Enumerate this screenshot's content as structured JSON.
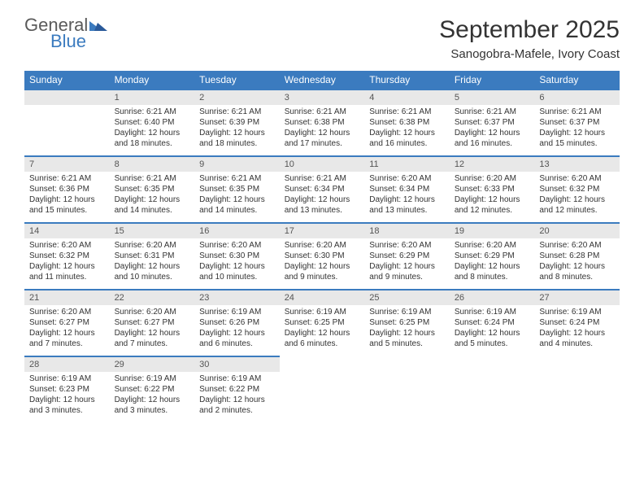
{
  "logo": {
    "text_general": "General",
    "text_blue": "Blue",
    "triangle_color": "#3b7bbf"
  },
  "title": "September 2025",
  "location": "Sanogobra-Mafele, Ivory Coast",
  "header_bg": "#3b7bbf",
  "header_fg": "#ffffff",
  "daynum_bg": "#e8e8e8",
  "row_border": "#3b7bbf",
  "weekdays": [
    "Sunday",
    "Monday",
    "Tuesday",
    "Wednesday",
    "Thursday",
    "Friday",
    "Saturday"
  ],
  "weeks": [
    [
      {
        "day": "",
        "lines": [
          "",
          "",
          "",
          ""
        ]
      },
      {
        "day": "1",
        "lines": [
          "Sunrise: 6:21 AM",
          "Sunset: 6:40 PM",
          "Daylight: 12 hours",
          "and 18 minutes."
        ]
      },
      {
        "day": "2",
        "lines": [
          "Sunrise: 6:21 AM",
          "Sunset: 6:39 PM",
          "Daylight: 12 hours",
          "and 18 minutes."
        ]
      },
      {
        "day": "3",
        "lines": [
          "Sunrise: 6:21 AM",
          "Sunset: 6:38 PM",
          "Daylight: 12 hours",
          "and 17 minutes."
        ]
      },
      {
        "day": "4",
        "lines": [
          "Sunrise: 6:21 AM",
          "Sunset: 6:38 PM",
          "Daylight: 12 hours",
          "and 16 minutes."
        ]
      },
      {
        "day": "5",
        "lines": [
          "Sunrise: 6:21 AM",
          "Sunset: 6:37 PM",
          "Daylight: 12 hours",
          "and 16 minutes."
        ]
      },
      {
        "day": "6",
        "lines": [
          "Sunrise: 6:21 AM",
          "Sunset: 6:37 PM",
          "Daylight: 12 hours",
          "and 15 minutes."
        ]
      }
    ],
    [
      {
        "day": "7",
        "lines": [
          "Sunrise: 6:21 AM",
          "Sunset: 6:36 PM",
          "Daylight: 12 hours",
          "and 15 minutes."
        ]
      },
      {
        "day": "8",
        "lines": [
          "Sunrise: 6:21 AM",
          "Sunset: 6:35 PM",
          "Daylight: 12 hours",
          "and 14 minutes."
        ]
      },
      {
        "day": "9",
        "lines": [
          "Sunrise: 6:21 AM",
          "Sunset: 6:35 PM",
          "Daylight: 12 hours",
          "and 14 minutes."
        ]
      },
      {
        "day": "10",
        "lines": [
          "Sunrise: 6:21 AM",
          "Sunset: 6:34 PM",
          "Daylight: 12 hours",
          "and 13 minutes."
        ]
      },
      {
        "day": "11",
        "lines": [
          "Sunrise: 6:20 AM",
          "Sunset: 6:34 PM",
          "Daylight: 12 hours",
          "and 13 minutes."
        ]
      },
      {
        "day": "12",
        "lines": [
          "Sunrise: 6:20 AM",
          "Sunset: 6:33 PM",
          "Daylight: 12 hours",
          "and 12 minutes."
        ]
      },
      {
        "day": "13",
        "lines": [
          "Sunrise: 6:20 AM",
          "Sunset: 6:32 PM",
          "Daylight: 12 hours",
          "and 12 minutes."
        ]
      }
    ],
    [
      {
        "day": "14",
        "lines": [
          "Sunrise: 6:20 AM",
          "Sunset: 6:32 PM",
          "Daylight: 12 hours",
          "and 11 minutes."
        ]
      },
      {
        "day": "15",
        "lines": [
          "Sunrise: 6:20 AM",
          "Sunset: 6:31 PM",
          "Daylight: 12 hours",
          "and 10 minutes."
        ]
      },
      {
        "day": "16",
        "lines": [
          "Sunrise: 6:20 AM",
          "Sunset: 6:30 PM",
          "Daylight: 12 hours",
          "and 10 minutes."
        ]
      },
      {
        "day": "17",
        "lines": [
          "Sunrise: 6:20 AM",
          "Sunset: 6:30 PM",
          "Daylight: 12 hours",
          "and 9 minutes."
        ]
      },
      {
        "day": "18",
        "lines": [
          "Sunrise: 6:20 AM",
          "Sunset: 6:29 PM",
          "Daylight: 12 hours",
          "and 9 minutes."
        ]
      },
      {
        "day": "19",
        "lines": [
          "Sunrise: 6:20 AM",
          "Sunset: 6:29 PM",
          "Daylight: 12 hours",
          "and 8 minutes."
        ]
      },
      {
        "day": "20",
        "lines": [
          "Sunrise: 6:20 AM",
          "Sunset: 6:28 PM",
          "Daylight: 12 hours",
          "and 8 minutes."
        ]
      }
    ],
    [
      {
        "day": "21",
        "lines": [
          "Sunrise: 6:20 AM",
          "Sunset: 6:27 PM",
          "Daylight: 12 hours",
          "and 7 minutes."
        ]
      },
      {
        "day": "22",
        "lines": [
          "Sunrise: 6:20 AM",
          "Sunset: 6:27 PM",
          "Daylight: 12 hours",
          "and 7 minutes."
        ]
      },
      {
        "day": "23",
        "lines": [
          "Sunrise: 6:19 AM",
          "Sunset: 6:26 PM",
          "Daylight: 12 hours",
          "and 6 minutes."
        ]
      },
      {
        "day": "24",
        "lines": [
          "Sunrise: 6:19 AM",
          "Sunset: 6:25 PM",
          "Daylight: 12 hours",
          "and 6 minutes."
        ]
      },
      {
        "day": "25",
        "lines": [
          "Sunrise: 6:19 AM",
          "Sunset: 6:25 PM",
          "Daylight: 12 hours",
          "and 5 minutes."
        ]
      },
      {
        "day": "26",
        "lines": [
          "Sunrise: 6:19 AM",
          "Sunset: 6:24 PM",
          "Daylight: 12 hours",
          "and 5 minutes."
        ]
      },
      {
        "day": "27",
        "lines": [
          "Sunrise: 6:19 AM",
          "Sunset: 6:24 PM",
          "Daylight: 12 hours",
          "and 4 minutes."
        ]
      }
    ],
    [
      {
        "day": "28",
        "lines": [
          "Sunrise: 6:19 AM",
          "Sunset: 6:23 PM",
          "Daylight: 12 hours",
          "and 3 minutes."
        ]
      },
      {
        "day": "29",
        "lines": [
          "Sunrise: 6:19 AM",
          "Sunset: 6:22 PM",
          "Daylight: 12 hours",
          "and 3 minutes."
        ]
      },
      {
        "day": "30",
        "lines": [
          "Sunrise: 6:19 AM",
          "Sunset: 6:22 PM",
          "Daylight: 12 hours",
          "and 2 minutes."
        ]
      },
      {
        "day": "",
        "lines": [
          "",
          "",
          "",
          ""
        ]
      },
      {
        "day": "",
        "lines": [
          "",
          "",
          "",
          ""
        ]
      },
      {
        "day": "",
        "lines": [
          "",
          "",
          "",
          ""
        ]
      },
      {
        "day": "",
        "lines": [
          "",
          "",
          "",
          ""
        ]
      }
    ]
  ]
}
